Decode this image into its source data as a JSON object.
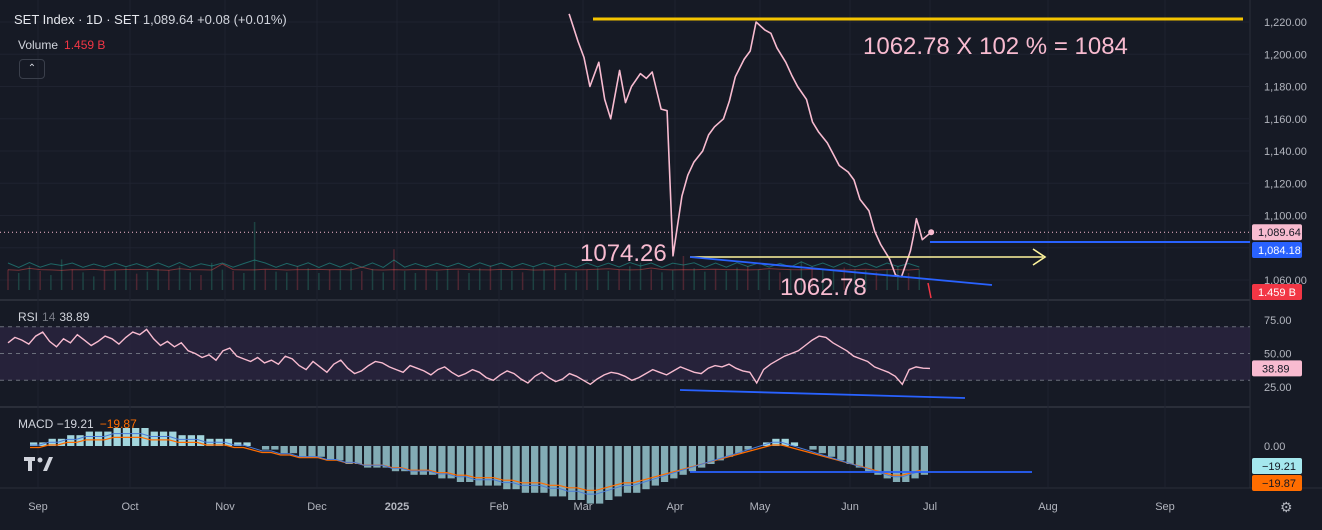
{
  "header": {
    "symbol": "SET Index · 1D · SET",
    "last": "1,089.64",
    "change": "+0.08 (+0.01%)"
  },
  "volume": {
    "label": "Volume",
    "value": "1.459 B"
  },
  "collapse_glyph": "⌃",
  "rsi_legend": {
    "label": "RSI",
    "period": "14",
    "value": "38.89"
  },
  "macd_legend": {
    "label": "MACD",
    "macd": "−19.21",
    "signal": "−19.87"
  },
  "annotations": {
    "formula": "1062.78 X 102 %  =  1084",
    "low1": "1074.26",
    "low2": "1062.78"
  },
  "price_scale": {
    "ticks": [
      "1,220.00",
      "1,200.00",
      "1,180.00",
      "1,160.00",
      "1,140.00",
      "1,120.00",
      "1,100.00",
      "1,060.00"
    ],
    "labels": [
      {
        "text": "1,089.64",
        "color": "#f8bbd0",
        "textColor": "#131722"
      },
      {
        "text": "1,084.18",
        "color": "#2962ff",
        "textColor": "#ffffff"
      },
      {
        "text": "1.459 B",
        "color": "#f23645",
        "textColor": "#ffffff"
      }
    ]
  },
  "rsi_scale": {
    "ticks": [
      "75.00",
      "50.00",
      "25.00"
    ],
    "label": {
      "text": "38.89",
      "color": "#f8bbd0",
      "textColor": "#131722"
    }
  },
  "macd_scale": {
    "ticks": [
      "0.00"
    ],
    "labels": [
      {
        "text": "−19.21",
        "color": "#a5e8ee",
        "textColor": "#131722"
      },
      {
        "text": "−19.87",
        "color": "#ff6d00",
        "textColor": "#131722"
      }
    ]
  },
  "time_axis": [
    "Sep",
    "Oct",
    "Nov",
    "Dec",
    "2025",
    "Feb",
    "Mar",
    "Apr",
    "May",
    "Jun",
    "Jul",
    "Aug",
    "Sep"
  ],
  "colors": {
    "price": "#f8bbd0",
    "hline_yellow": "#f5c400",
    "trend_blue": "#2962ff",
    "arrow": "#fff59d",
    "rsi_line": "#f8bbd0",
    "rsi_band": "#2a2440",
    "macd_hist": "#b2ebf2",
    "signal": "#ff6d00",
    "macd_line": "#2962ff"
  },
  "gear_icon": "⚙",
  "chart_data": [
    {
      "type": "line",
      "name": "SET Index",
      "ylim": [
        1050,
        1224
      ],
      "x": [
        "2025-02-28",
        "2025-03-03",
        "2025-03-05",
        "2025-03-07",
        "2025-03-10",
        "2025-03-12",
        "2025-03-14",
        "2025-03-17",
        "2025-03-19",
        "2025-03-21",
        "2025-03-24",
        "2025-03-26",
        "2025-03-28",
        "2025-03-31",
        "2025-04-02",
        "2025-04-04",
        "2025-04-07",
        "2025-04-09",
        "2025-04-11",
        "2025-04-14",
        "2025-04-16",
        "2025-04-18",
        "2025-04-21",
        "2025-04-23",
        "2025-04-25",
        "2025-04-28",
        "2025-04-30",
        "2025-05-02",
        "2025-05-05",
        "2025-05-07",
        "2025-05-09",
        "2025-05-12",
        "2025-05-14",
        "2025-05-16",
        "2025-05-19",
        "2025-05-21",
        "2025-05-23",
        "2025-05-26",
        "2025-05-28",
        "2025-05-30",
        "2025-06-02",
        "2025-06-04",
        "2025-06-06",
        "2025-06-09",
        "2025-06-11",
        "2025-06-13",
        "2025-06-16",
        "2025-06-18",
        "2025-06-20",
        "2025-06-23",
        "2025-06-24",
        "2025-06-25",
        "2025-06-26",
        "2025-06-27",
        "2025-06-30"
      ],
      "y": [
        1225,
        1208,
        1198,
        1180,
        1195,
        1172,
        1160,
        1190,
        1170,
        1180,
        1188,
        1185,
        1189,
        1166,
        1165,
        1075,
        1112,
        1125,
        1133,
        1140,
        1150,
        1155,
        1160,
        1171,
        1186,
        1197,
        1202,
        1220,
        1215,
        1213,
        1204,
        1195,
        1187,
        1180,
        1172,
        1158,
        1152,
        1145,
        1138,
        1131,
        1127,
        1122,
        1110,
        1103,
        1090,
        1082,
        1073,
        1063,
        1062,
        1078,
        1087,
        1098,
        1092,
        1085,
        1089.64
      ]
    },
    {
      "type": "bar",
      "name": "Volume",
      "values_relative": [
        0.3,
        0.25,
        0.35,
        0.28,
        0.22,
        0.45,
        0.3,
        0.26,
        0.2,
        0.3,
        0.28,
        0.33,
        0.24,
        0.27,
        0.31,
        0.29,
        0.35,
        0.26,
        0.22,
        0.4,
        0.3,
        0.28,
        0.25,
        1.0,
        0.3,
        0.27,
        0.26,
        0.35,
        0.32,
        0.25,
        0.3,
        0.29,
        0.33,
        0.28,
        0.31,
        0.26,
        0.6,
        0.28,
        0.25,
        0.3,
        0.27,
        0.31,
        0.29,
        0.25,
        0.32,
        0.36,
        0.3,
        0.28,
        0.26,
        0.33,
        0.3,
        0.35,
        0.25,
        0.27,
        0.3,
        0.32,
        0.28,
        0.3,
        0.35,
        0.4,
        0.3,
        0.26,
        0.29,
        0.5,
        0.32,
        0.27,
        0.3,
        0.28,
        0.33,
        0.35,
        0.3,
        0.29,
        0.26,
        0.3,
        0.42,
        0.35,
        0.3,
        0.28,
        0.33,
        0.31,
        0.29,
        0.26,
        0.3,
        0.35,
        0.25,
        0.3
      ],
      "last": "1.459 B"
    },
    {
      "type": "line",
      "name": "RSI",
      "ylim": [
        0,
        100
      ],
      "y": [
        58,
        62,
        60,
        57,
        63,
        66,
        59,
        55,
        61,
        58,
        64,
        60,
        56,
        59,
        63,
        61,
        57,
        62,
        66,
        64,
        68,
        61,
        56,
        59,
        55,
        58,
        52,
        50,
        47,
        49,
        45,
        52,
        54,
        48,
        46,
        44,
        47,
        43,
        45,
        42,
        48,
        46,
        41,
        38,
        44,
        40,
        36,
        42,
        45,
        39,
        35,
        37,
        41,
        44,
        43,
        40,
        38,
        36,
        41,
        39,
        37,
        34,
        38,
        40,
        36,
        33,
        35,
        38,
        36,
        32,
        30,
        34,
        37,
        35,
        31,
        28,
        33,
        36,
        32,
        29,
        31,
        35,
        33,
        30,
        27,
        31,
        34,
        36,
        35,
        33,
        30,
        32,
        35,
        38,
        36,
        34,
        37,
        40,
        38,
        36,
        35,
        39,
        41,
        40,
        42,
        39,
        37,
        36,
        28,
        38,
        42,
        45,
        48,
        50,
        52,
        56,
        60,
        63,
        62,
        58,
        55,
        52,
        48,
        46,
        44,
        40,
        38,
        36,
        33,
        27,
        38,
        40,
        39,
        38.89
      ],
      "bands": [
        75,
        50,
        30
      ]
    },
    {
      "type": "bar",
      "name": "MACD",
      "macd": -19.21,
      "signal": -19.87,
      "histogram_shape": [
        1,
        1,
        2,
        2,
        3,
        3,
        4,
        4,
        4,
        5,
        5,
        5,
        5,
        4,
        4,
        4,
        3,
        3,
        3,
        2,
        2,
        2,
        1,
        1,
        0,
        -1,
        -1,
        -2,
        -2,
        -3,
        -3,
        -3,
        -4,
        -4,
        -5,
        -5,
        -6,
        -6,
        -6,
        -7,
        -7,
        -8,
        -8,
        -8,
        -9,
        -9,
        -10,
        -10,
        -11,
        -11,
        -11,
        -12,
        -12,
        -13,
        -13,
        -13,
        -14,
        -14,
        -15,
        -15,
        -16,
        -16,
        -15,
        -14,
        -13,
        -13,
        -12,
        -11,
        -10,
        -9,
        -8,
        -7,
        -6,
        -5,
        -4,
        -3,
        -2,
        -1,
        0,
        1,
        2,
        2,
        1,
        0,
        -1,
        -2,
        -3,
        -4,
        -5,
        -6,
        -7,
        -8,
        -9,
        -10,
        -10,
        -9,
        -8
      ]
    }
  ]
}
